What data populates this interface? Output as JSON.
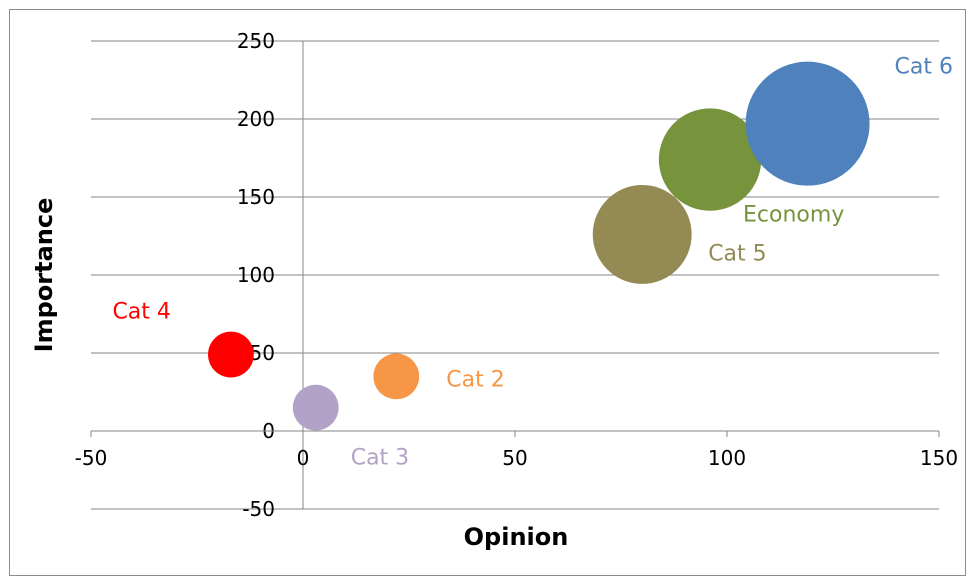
{
  "chart_data": {
    "type": "bubble",
    "xlabel": "Opinion",
    "ylabel": "Importance",
    "xlim": [
      -50,
      150
    ],
    "ylim": [
      -50,
      250
    ],
    "x_ticks": [
      -50,
      0,
      50,
      100,
      150
    ],
    "y_ticks": [
      -50,
      0,
      50,
      100,
      150,
      200,
      250
    ],
    "grid": "horizontal",
    "legend": "none",
    "points": [
      {
        "label": "Cat 4",
        "x": -17,
        "y": 49,
        "size": 3,
        "color": "#ff0000"
      },
      {
        "label": "Cat 2",
        "x": 22,
        "y": 35,
        "size": 3,
        "color": "#f79646"
      },
      {
        "label": "Cat 3",
        "x": 3,
        "y": 15,
        "size": 3,
        "color": "#b3a2c7"
      },
      {
        "label": "Cat 5",
        "x": 80,
        "y": 126,
        "size": 14,
        "color": "#948a54"
      },
      {
        "label": "Economy",
        "x": 96,
        "y": 174,
        "size": 15,
        "color": "#77933c"
      },
      {
        "label": "Cat 6",
        "x": 119,
        "y": 197,
        "size": 22,
        "color": "#4f81bd"
      }
    ]
  }
}
